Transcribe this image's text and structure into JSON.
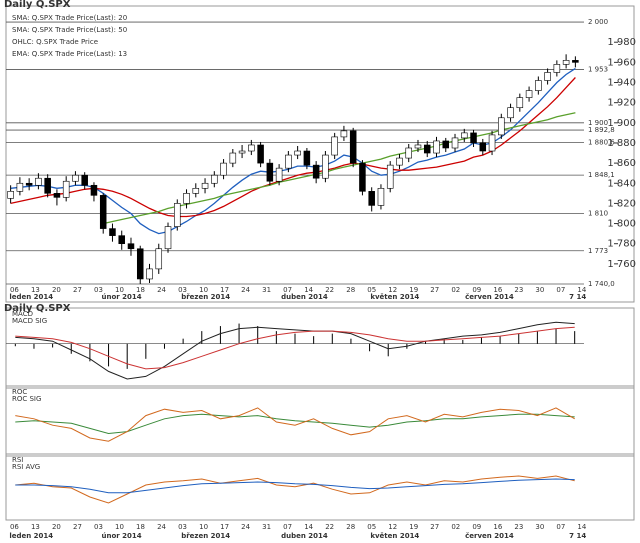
{
  "chart_data": [
    {
      "type": "candlestick",
      "title": "Daily Q.SPX",
      "legend": [
        {
          "name": "SMA: Q.SPX Trade Price(Last): 20",
          "color": "#cc0000"
        },
        {
          "name": "SMA: Q.SPX Trade Price(Last): 50",
          "color": "#5aa02c"
        },
        {
          "name": "OHLC: Q.SPX Trade Price",
          "color": "#000000"
        },
        {
          "name": "EMA: Q.SPX Trade Price(Last): 13",
          "color": "#1f5fbf"
        }
      ],
      "candles": [
        [
          1825,
          1838,
          1820,
          1832
        ],
        [
          1832,
          1846,
          1828,
          1840
        ],
        [
          1840,
          1845,
          1833,
          1838
        ],
        [
          1838,
          1850,
          1834,
          1845
        ],
        [
          1845,
          1849,
          1826,
          1830
        ],
        [
          1830,
          1834,
          1818,
          1826
        ],
        [
          1826,
          1847,
          1822,
          1842
        ],
        [
          1842,
          1852,
          1838,
          1848
        ],
        [
          1848,
          1851,
          1834,
          1838
        ],
        [
          1838,
          1841,
          1822,
          1828
        ],
        [
          1828,
          1830,
          1790,
          1795
        ],
        [
          1795,
          1800,
          1782,
          1788
        ],
        [
          1788,
          1793,
          1774,
          1780
        ],
        [
          1780,
          1786,
          1768,
          1775
        ],
        [
          1775,
          1778,
          1740,
          1745
        ],
        [
          1745,
          1760,
          1741,
          1755
        ],
        [
          1755,
          1780,
          1750,
          1775
        ],
        [
          1775,
          1801,
          1771,
          1797
        ],
        [
          1797,
          1824,
          1793,
          1820
        ],
        [
          1820,
          1834,
          1815,
          1830
        ],
        [
          1830,
          1840,
          1826,
          1835
        ],
        [
          1835,
          1845,
          1830,
          1840
        ],
        [
          1840,
          1852,
          1836,
          1848
        ],
        [
          1848,
          1864,
          1844,
          1860
        ],
        [
          1860,
          1874,
          1856,
          1870
        ],
        [
          1870,
          1878,
          1865,
          1872
        ],
        [
          1872,
          1883,
          1868,
          1878
        ],
        [
          1878,
          1881,
          1856,
          1860
        ],
        [
          1860,
          1864,
          1838,
          1842
        ],
        [
          1842,
          1859,
          1838,
          1855
        ],
        [
          1855,
          1872,
          1851,
          1868
        ],
        [
          1868,
          1877,
          1864,
          1872
        ],
        [
          1872,
          1875,
          1854,
          1858
        ],
        [
          1858,
          1862,
          1840,
          1845
        ],
        [
          1845,
          1872,
          1841,
          1868
        ],
        [
          1868,
          1890,
          1864,
          1886
        ],
        [
          1886,
          1897,
          1882,
          1892
        ],
        [
          1892,
          1895,
          1856,
          1860
        ],
        [
          1860,
          1863,
          1828,
          1832
        ],
        [
          1832,
          1836,
          1812,
          1818
        ],
        [
          1818,
          1839,
          1814,
          1835
        ],
        [
          1835,
          1862,
          1831,
          1858
        ],
        [
          1858,
          1869,
          1854,
          1865
        ],
        [
          1865,
          1879,
          1861,
          1875
        ],
        [
          1875,
          1883,
          1871,
          1878
        ],
        [
          1878,
          1882,
          1866,
          1870
        ],
        [
          1870,
          1886,
          1866,
          1882
        ],
        [
          1882,
          1885,
          1871,
          1875
        ],
        [
          1875,
          1889,
          1871,
          1885
        ],
        [
          1885,
          1894,
          1881,
          1890
        ],
        [
          1890,
          1893,
          1876,
          1880
        ],
        [
          1880,
          1884,
          1868,
          1872
        ],
        [
          1872,
          1892,
          1868,
          1888
        ],
        [
          1888,
          1909,
          1884,
          1905
        ],
        [
          1905,
          1919,
          1901,
          1915
        ],
        [
          1915,
          1929,
          1911,
          1925
        ],
        [
          1925,
          1936,
          1921,
          1932
        ],
        [
          1932,
          1946,
          1928,
          1942
        ],
        [
          1942,
          1954,
          1938,
          1950
        ],
        [
          1950,
          1962,
          1946,
          1958
        ],
        [
          1958,
          1968,
          1954,
          1962
        ],
        [
          1962,
          1966,
          1955,
          1960
        ]
      ],
      "series": [
        {
          "color": "#1f5fbf",
          "values": [
            1835,
            1836,
            1837,
            1838,
            1837,
            1835,
            1836,
            1838,
            1838,
            1836,
            1830,
            1823,
            1816,
            1810,
            1800,
            1794,
            1790,
            1792,
            1797,
            1802,
            1808,
            1813,
            1820,
            1828,
            1836,
            1843,
            1849,
            1852,
            1851,
            1852,
            1854,
            1857,
            1857,
            1856,
            1858,
            1862,
            1868,
            1866,
            1860,
            1852,
            1848,
            1849,
            1852,
            1856,
            1861,
            1863,
            1866,
            1868,
            1871,
            1874,
            1880,
            1878,
            1880,
            1886,
            1893,
            1902,
            1911,
            1920,
            1930,
            1940,
            1948,
            1954
          ]
        },
        {
          "color": "#cc0000",
          "values": [
            1820,
            1822,
            1824,
            1826,
            1828,
            1829,
            1830,
            1832,
            1834,
            1835,
            1834,
            1832,
            1829,
            1825,
            1820,
            1815,
            1811,
            1808,
            1807,
            1807,
            1808,
            1810,
            1813,
            1817,
            1822,
            1827,
            1832,
            1836,
            1839,
            1842,
            1845,
            1848,
            1850,
            1851,
            1853,
            1855,
            1858,
            1860,
            1859,
            1857,
            1855,
            1854,
            1853,
            1853,
            1854,
            1855,
            1856,
            1858,
            1860,
            1862,
            1866,
            1868,
            1872,
            1878,
            1885,
            1892,
            1900,
            1908,
            1916,
            1925,
            1935,
            1945
          ]
        },
        {
          "color": "#5aa02c",
          "values": [
            null,
            null,
            null,
            null,
            null,
            null,
            null,
            null,
            null,
            null,
            1800,
            1802,
            1804,
            1806,
            1808,
            1810,
            1812,
            1815,
            1817,
            1819,
            1821,
            1823,
            1825,
            1828,
            1830,
            1832,
            1834,
            1836,
            1838,
            1841,
            1843,
            1845,
            1847,
            1849,
            1851,
            1854,
            1856,
            1858,
            1860,
            1862,
            1864,
            1867,
            1869,
            1871,
            1873,
            1875,
            1877,
            1880,
            1882,
            1884,
            1886,
            1888,
            1890,
            1893,
            1895,
            1897,
            1899,
            1901,
            1903,
            1906,
            1908,
            1910
          ]
        }
      ],
      "ylim": [
        1740,
        2010
      ],
      "yticks": [
        {
          "value": 1760,
          "label": "1 760"
        },
        {
          "value": 1780,
          "label": "1 780"
        },
        {
          "value": 1800,
          "label": "1 800"
        },
        {
          "value": 1820,
          "label": "1 820"
        },
        {
          "value": 1840,
          "label": "1 840"
        },
        {
          "value": 1860,
          "label": "1 860"
        },
        {
          "value": 1880,
          "label": "1 880"
        },
        {
          "value": 1900,
          "label": "1 900"
        },
        {
          "value": 1920,
          "label": "1 920"
        },
        {
          "value": 1940,
          "label": "1 940"
        },
        {
          "value": 1960,
          "label": "1 960"
        },
        {
          "value": 1980,
          "label": "1 980"
        }
      ],
      "levels": [
        {
          "value": 2000,
          "label": "2 000"
        },
        {
          "value": 1953,
          "label": "1 953"
        },
        {
          "value": 1900,
          "label": "1 900"
        },
        {
          "value": 1892.8,
          "label": "1 892,8"
        },
        {
          "value": 1880.6,
          "label": "1 880,6"
        },
        {
          "value": 1848.1,
          "label": "1 848,1"
        },
        {
          "value": 1810,
          "label": "1 810"
        },
        {
          "value": 1773,
          "label": "1 773"
        },
        {
          "value": 1740,
          "label": "1 740,0"
        }
      ],
      "x_labels": [
        "06",
        "13",
        "20",
        "27",
        "03",
        "10",
        "18",
        "24",
        "03",
        "10",
        "17",
        "24",
        "31",
        "07",
        "14",
        "22",
        "28",
        "05",
        "12",
        "19",
        "27",
        "02",
        "09",
        "16",
        "23",
        "30",
        "07",
        "14"
      ],
      "months": [
        "leden 2014",
        "únor 2014",
        "březen 2014",
        "duben 2014",
        "květen 2014",
        "červen 2014",
        "7 14"
      ]
    },
    {
      "type": "bar_line",
      "title": "Daily Q.SPX",
      "values": [
        -2,
        -4,
        -3,
        -8,
        -14,
        -18,
        -20,
        -12,
        -4,
        4,
        10,
        14,
        16,
        14,
        10,
        8,
        6,
        8,
        4,
        -6,
        -10,
        -4,
        2,
        4,
        3,
        5,
        6,
        8,
        10,
        12,
        10
      ],
      "color": "#000000",
      "series": [
        {
          "name": "MACD",
          "color": "#222222",
          "values": [
            5,
            4,
            2,
            -5,
            -12,
            -22,
            -28,
            -26,
            -18,
            -8,
            2,
            8,
            12,
            13,
            12,
            11,
            10,
            10,
            8,
            2,
            -4,
            -2,
            2,
            4,
            6,
            7,
            9,
            12,
            15,
            17,
            16
          ]
        },
        {
          "name": "MACD SIG",
          "color": "#cc3333",
          "values": [
            6,
            5,
            4,
            1,
            -4,
            -10,
            -16,
            -20,
            -19,
            -15,
            -10,
            -5,
            0,
            4,
            7,
            9,
            10,
            10,
            9,
            7,
            4,
            2,
            2,
            3,
            4,
            5,
            6,
            8,
            10,
            12,
            13
          ]
        }
      ],
      "ylim": [
        -32,
        22
      ]
    },
    {
      "type": "line",
      "series": [
        {
          "name": "ROC",
          "color": "#3a8a3a",
          "values": [
            50,
            52,
            50,
            48,
            40,
            32,
            35,
            45,
            55,
            60,
            62,
            60,
            58,
            60,
            55,
            52,
            50,
            48,
            45,
            42,
            45,
            50,
            52,
            55,
            55,
            58,
            60,
            62,
            62,
            60,
            58
          ]
        },
        {
          "name": "ROC SIG",
          "color": "#d2691e",
          "values": [
            60,
            55,
            45,
            40,
            25,
            20,
            35,
            60,
            70,
            65,
            68,
            55,
            60,
            72,
            50,
            45,
            55,
            40,
            30,
            35,
            55,
            60,
            50,
            62,
            58,
            65,
            70,
            68,
            60,
            72,
            55
          ]
        }
      ],
      "ylim": [
        0,
        100
      ]
    },
    {
      "type": "line",
      "series": [
        {
          "name": "RSI",
          "color": "#d2691e",
          "values": [
            55,
            58,
            52,
            50,
            35,
            25,
            40,
            55,
            60,
            62,
            65,
            58,
            62,
            66,
            55,
            52,
            58,
            48,
            40,
            42,
            55,
            60,
            55,
            62,
            60,
            65,
            68,
            70,
            66,
            70,
            62
          ]
        },
        {
          "name": "RSI AVG",
          "color": "#1f5fbf",
          "values": [
            55,
            55,
            54,
            52,
            48,
            42,
            42,
            46,
            50,
            54,
            57,
            58,
            59,
            60,
            59,
            57,
            56,
            54,
            51,
            49,
            50,
            52,
            54,
            56,
            57,
            59,
            61,
            63,
            64,
            65,
            64
          ]
        }
      ],
      "ylim": [
        0,
        100
      ]
    }
  ]
}
